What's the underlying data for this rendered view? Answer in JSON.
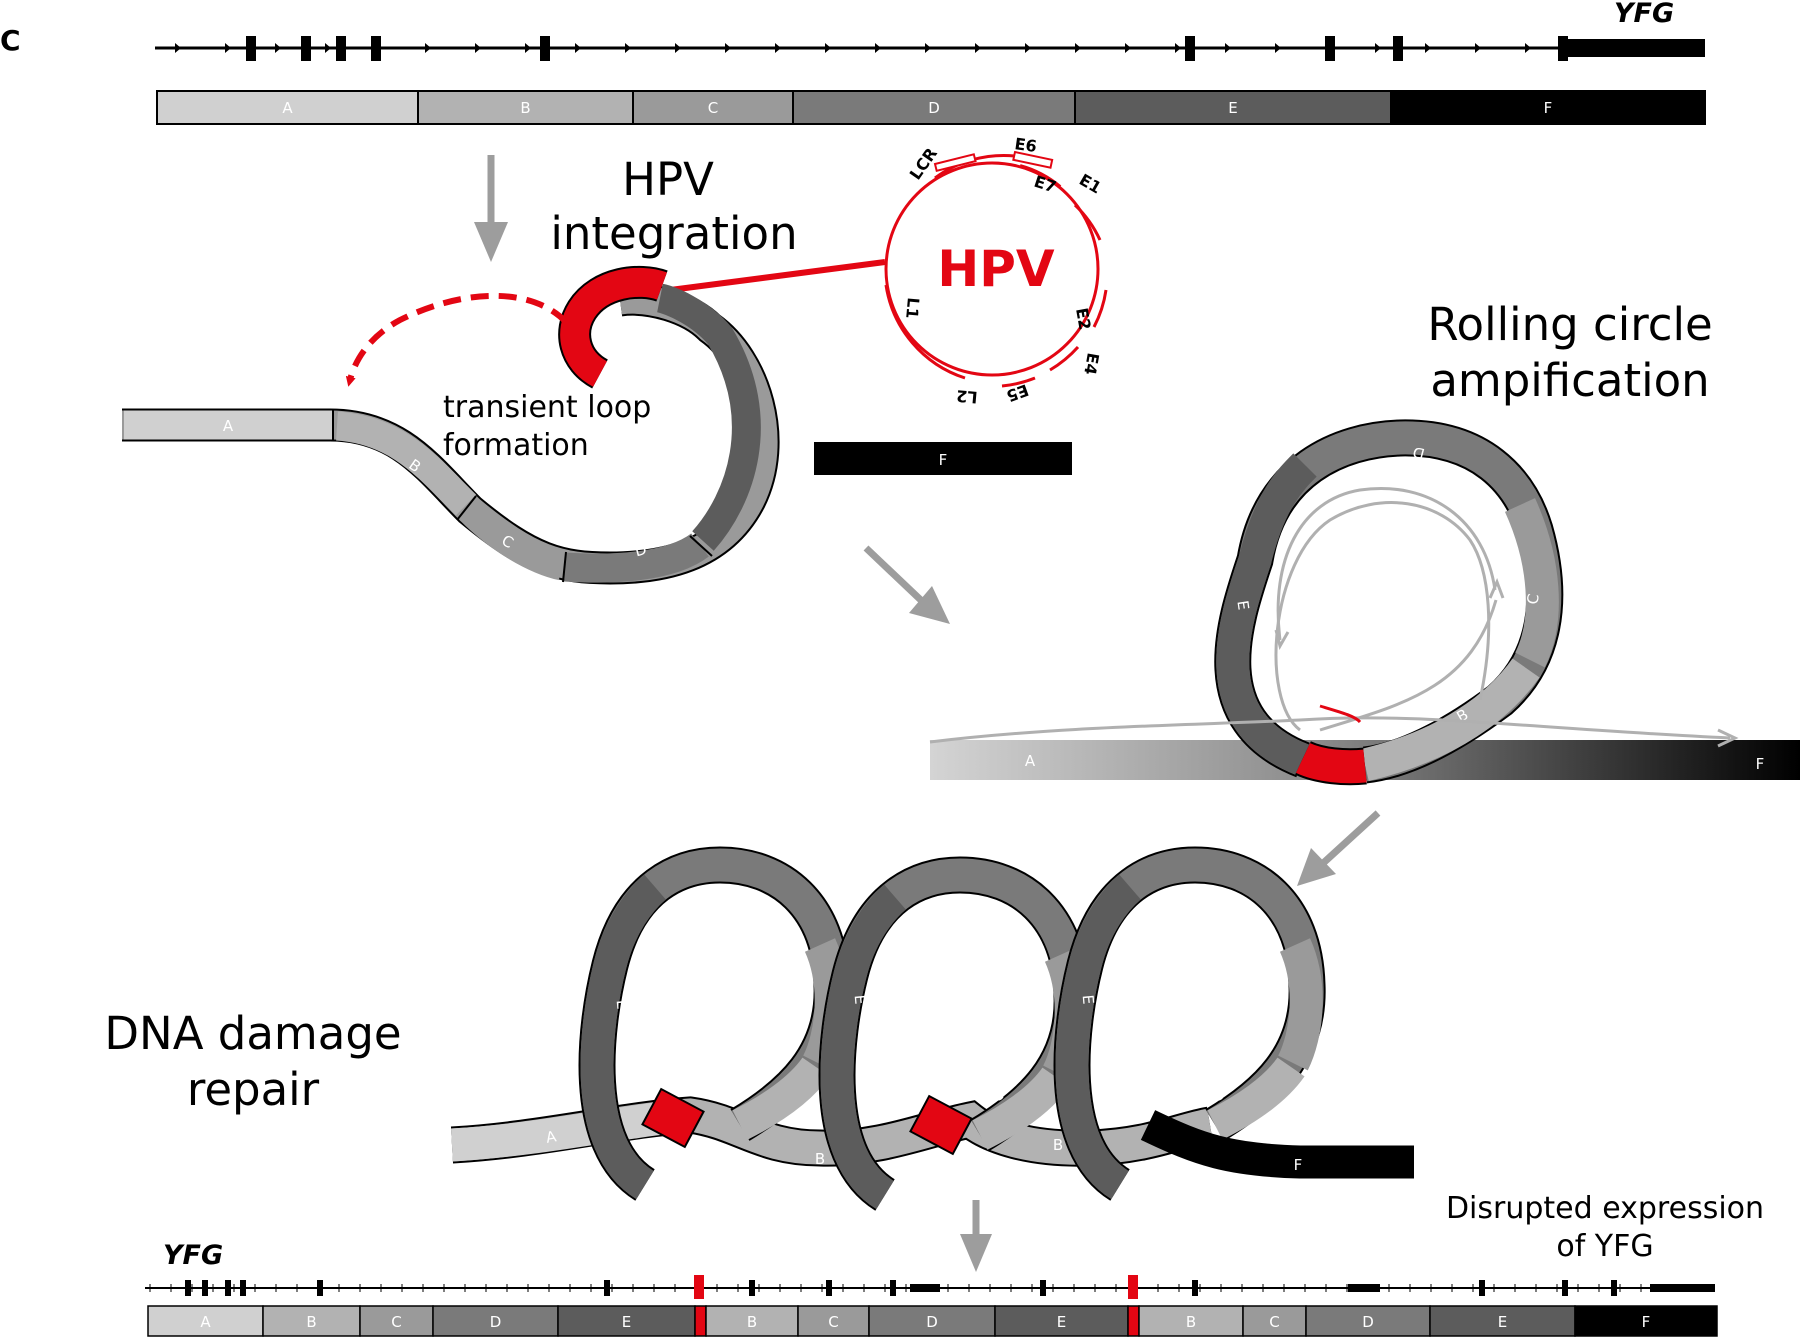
{
  "panel_label": "C",
  "gene_name": "YFG",
  "segments": [
    "A",
    "B",
    "C",
    "D",
    "E",
    "F"
  ],
  "colors": {
    "A": "#d0d0d0",
    "B": "#b2b2b2",
    "C": "#9a9a9a",
    "D": "#7a7a7a",
    "E": "#5c5c5c",
    "F": "#000000",
    "hpv": "#e30613",
    "arrow": "#9d9d9d"
  },
  "steps": {
    "hpv_integration": [
      "HPV",
      "integration"
    ],
    "loop": [
      "transient loop",
      "formation"
    ],
    "rolling": [
      "Rolling circle",
      "ampification"
    ],
    "repair": [
      "DNA damage",
      "repair"
    ],
    "disrupted": [
      "Disrupted expression",
      "of YFG"
    ]
  },
  "hpv": {
    "label": "HPV",
    "genes": [
      "E6",
      "E7",
      "E1",
      "E2",
      "E4",
      "E5",
      "L2",
      "L1",
      "LCR"
    ]
  },
  "bottom_bar": [
    "A",
    "B",
    "C",
    "D",
    "E",
    "B",
    "C",
    "D",
    "E",
    "B",
    "C",
    "D",
    "E",
    "F"
  ]
}
